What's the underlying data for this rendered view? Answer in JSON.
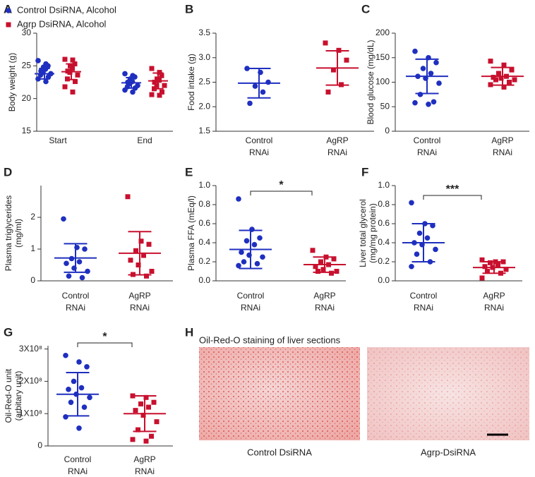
{
  "chart_data": [
    {
      "type": "dotplot",
      "panel": "A",
      "ylabel": [
        "Body weight (g)"
      ],
      "ylim": [
        15,
        30
      ],
      "yticks": [
        15,
        20,
        25,
        30
      ],
      "categories": [
        [
          "Start"
        ],
        [
          "End"
        ]
      ],
      "series": [
        {
          "name": "Control DsiRNA, Alcohol",
          "color": "#1f2fbf",
          "marker": "circle",
          "values": [
            [
              25.8,
              25.3,
              25.0,
              24.8,
              24.5,
              24.2,
              24.0,
              23.8,
              23.6,
              23.3,
              23.0,
              22.6
            ],
            [
              23.8,
              23.5,
              23.3,
              23.0,
              22.6,
              22.5,
              22.3,
              22.0,
              21.8,
              21.6,
              21.3,
              21.0
            ]
          ],
          "mean": [
            23.8,
            22.4
          ],
          "sd": [
            0.8,
            0.8
          ]
        },
        {
          "name": "Agrp DsiRNA, Alcohol",
          "color": "#c8102e",
          "marker": "square",
          "values": [
            [
              26.0,
              25.9,
              25.3,
              25.0,
              24.6,
              24.2,
              24.0,
              23.6,
              23.0,
              22.6,
              21.8,
              21.0
            ],
            [
              24.6,
              24.0,
              23.5,
              23.0,
              22.8,
              22.5,
              22.0,
              22.0,
              21.5,
              21.0,
              20.6,
              20.5
            ]
          ],
          "mean": [
            24.1,
            22.7
          ],
          "sd": [
            1.2,
            1.2
          ]
        }
      ]
    },
    {
      "type": "dotplot",
      "panel": "B",
      "ylabel": [
        "Food intake (g)"
      ],
      "ylim": [
        1.5,
        3.5
      ],
      "yticks": [
        1.5,
        {
          "value": 2,
          "label": "2.0"
        },
        2.5,
        {
          "value": 3,
          "label": "3.0"
        },
        3.5
      ],
      "categories": [
        [
          "Control",
          "RNAi"
        ],
        [
          "AgRP",
          "RNAi"
        ]
      ],
      "groups": [
        {
          "color": "#1f2fbf",
          "marker": "circle",
          "values": [
            2.78,
            2.7,
            2.5,
            2.42,
            2.3,
            2.07
          ],
          "mean": 2.48,
          "sd": 0.3
        },
        {
          "color": "#c8102e",
          "marker": "square",
          "values": [
            3.3,
            3.15,
            2.95,
            2.75,
            2.45,
            2.3
          ],
          "mean": 2.79,
          "sd": 0.35
        }
      ]
    },
    {
      "type": "dotplot",
      "panel": "C",
      "ylabel": [
        "Blood glucose (mg/dL)"
      ],
      "ylim": [
        0,
        200
      ],
      "yticks": [
        0,
        50,
        100,
        150,
        200
      ],
      "categories": [
        [
          "Control",
          "RNAi"
        ],
        [
          "AgRP",
          "RNAi"
        ]
      ],
      "groups": [
        {
          "color": "#1f2fbf",
          "marker": "circle",
          "values": [
            163,
            150,
            140,
            128,
            118,
            112,
            108,
            98,
            75,
            60,
            58,
            55
          ],
          "mean": 112,
          "sd": 35
        },
        {
          "color": "#c8102e",
          "marker": "square",
          "values": [
            143,
            135,
            125,
            118,
            112,
            110,
            108,
            105,
            105,
            100,
            95,
            90
          ],
          "mean": 112,
          "sd": 18
        }
      ]
    },
    {
      "type": "dotplot",
      "panel": "D",
      "ylabel": [
        "Plasma triglycerides",
        "(mg/ml)"
      ],
      "ylim": [
        0,
        3
      ],
      "yticks": [
        0,
        1,
        2
      ],
      "categories": [
        [
          "Control",
          "RNAi"
        ],
        [
          "AgRP",
          "RNAi"
        ]
      ],
      "groups": [
        {
          "color": "#1f2fbf",
          "marker": "circle",
          "values": [
            1.95,
            1.05,
            1.0,
            0.7,
            0.6,
            0.55,
            0.4,
            0.3,
            0.15,
            0.1
          ],
          "mean": 0.72,
          "sd": 0.45
        },
        {
          "color": "#c8102e",
          "marker": "square",
          "values": [
            2.65,
            1.25,
            1.15,
            0.95,
            0.8,
            0.65,
            0.5,
            0.3,
            0.2,
            0.15
          ],
          "mean": 0.87,
          "sd": 0.68
        }
      ]
    },
    {
      "type": "dotplot",
      "panel": "E",
      "ylabel": [
        "Plasma FFA  (mEq/l)"
      ],
      "ylim": [
        0,
        1
      ],
      "yticks": [
        {
          "value": 0,
          "label": "0.0"
        },
        0.2,
        0.4,
        0.6,
        0.8,
        {
          "value": 1,
          "label": "1.0"
        }
      ],
      "categories": [
        [
          "Control",
          "RNAi"
        ],
        [
          "AgRP",
          "RNAi"
        ]
      ],
      "significance": "*",
      "groups": [
        {
          "color": "#1f2fbf",
          "marker": "circle",
          "values": [
            0.86,
            0.54,
            0.45,
            0.42,
            0.38,
            0.3,
            0.27,
            0.25,
            0.2,
            0.18,
            0.16
          ],
          "mean": 0.33,
          "sd": 0.2
        },
        {
          "color": "#c8102e",
          "marker": "square",
          "values": [
            0.32,
            0.25,
            0.23,
            0.2,
            0.17,
            0.15,
            0.12,
            0.1,
            0.1,
            0.08
          ],
          "mean": 0.17,
          "sd": 0.08
        }
      ]
    },
    {
      "type": "dotplot",
      "panel": "F",
      "ylabel": [
        "Liver total glycerol",
        "(mg/mg protein)"
      ],
      "ylim": [
        0,
        1
      ],
      "yticks": [
        {
          "value": 0,
          "label": "0.0"
        },
        0.2,
        0.4,
        0.6,
        0.8,
        {
          "value": 1,
          "label": "1.0"
        }
      ],
      "categories": [
        [
          "Control",
          "RNAi"
        ],
        [
          "AgRP",
          "RNAi"
        ]
      ],
      "significance": "***",
      "groups": [
        {
          "color": "#1f2fbf",
          "marker": "circle",
          "values": [
            0.82,
            0.6,
            0.58,
            0.5,
            0.45,
            0.4,
            0.38,
            0.33,
            0.28,
            0.2,
            0.15
          ],
          "mean": 0.4,
          "sd": 0.2
        },
        {
          "color": "#c8102e",
          "marker": "square",
          "values": [
            0.22,
            0.2,
            0.2,
            0.19,
            0.17,
            0.15,
            0.14,
            0.12,
            0.1,
            0.08,
            0.03
          ],
          "mean": 0.14,
          "sd": 0.06
        }
      ]
    },
    {
      "type": "dotplot",
      "panel": "G",
      "ylabel": [
        "Oil-Red-O unit",
        "(arbitary unit)"
      ],
      "ylim": [
        0,
        310000000
      ],
      "yticks": [
        0,
        {
          "value": 100000000,
          "label": "1X10⁸"
        },
        {
          "value": 200000000,
          "label": "2X10⁸"
        },
        {
          "value": 300000000,
          "label": "3X10⁸"
        }
      ],
      "categories": [
        [
          "Control",
          "RNAi"
        ],
        [
          "AgRP",
          "RNAi"
        ]
      ],
      "significance": "*",
      "groups": [
        {
          "color": "#1f2fbf",
          "marker": "circle",
          "values": [
            280000000,
            260000000,
            245000000,
            200000000,
            180000000,
            175000000,
            160000000,
            150000000,
            135000000,
            120000000,
            90000000,
            55000000
          ],
          "mean": 160000000,
          "sd": 67000000
        },
        {
          "color": "#c8102e",
          "marker": "square",
          "values": [
            155000000,
            150000000,
            135000000,
            130000000,
            120000000,
            110000000,
            95000000,
            75000000,
            50000000,
            30000000,
            20000000,
            15000000
          ],
          "mean": 100000000,
          "sd": 55000000
        }
      ]
    },
    {
      "type": "image",
      "panel": "H",
      "title": "Oil-Red-O staining of liver sections",
      "captions": [
        "Control DsiRNA",
        "Agrp-DsiRNA"
      ]
    }
  ]
}
